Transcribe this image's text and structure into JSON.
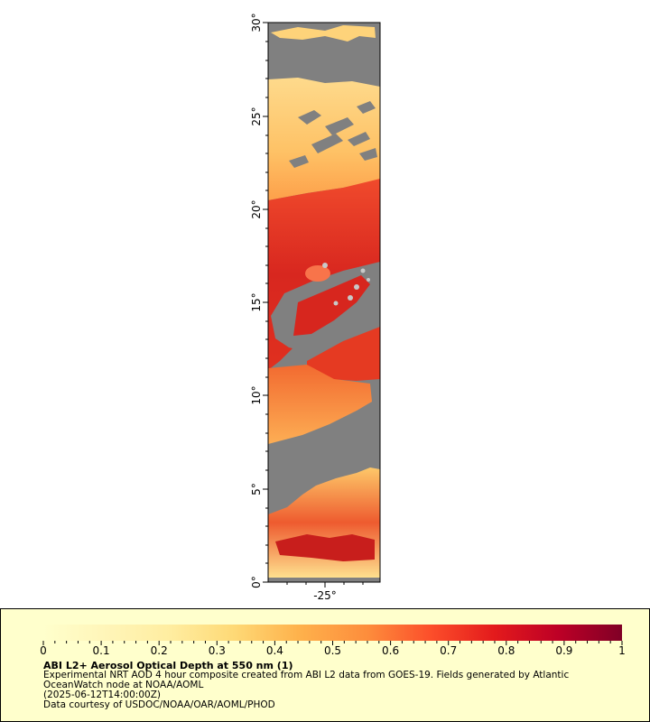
{
  "map": {
    "latitude_labels": [
      "30°",
      "25°",
      "20°",
      "15°",
      "10°",
      "5°",
      "0°"
    ],
    "longitude_labels": [
      "-25°"
    ],
    "no_data_color": "#808080",
    "land_mask_color": "#c8c8c8"
  },
  "colorbar": {
    "tick_labels": [
      "0",
      "0.1",
      "0.2",
      "0.3",
      "0.4",
      "0.5",
      "0.6",
      "0.7",
      "0.8",
      "0.9",
      "1"
    ],
    "min": 0,
    "max": 1,
    "colors": [
      "#ffffcc",
      "#fff5b8",
      "#ffeda0",
      "#fed976",
      "#feb24c",
      "#fd8d3c",
      "#fc4e2a",
      "#e31a1c",
      "#bd0026",
      "#800026"
    ]
  },
  "legend": {
    "title": "ABI L2+ Aerosol Optical Depth at 550 nm (1)",
    "line1": "Experimental NRT AOD 4 hour composite created from ABI L2 data from GOES-19. Fields generated by Atlantic",
    "line2": "OceanWatch node at NOAA/AOML",
    "line3": "(2025-06-12T14:00:00Z)",
    "line4": "Data courtesy of USDOC/NOAA/OAR/AOML/PHOD"
  }
}
